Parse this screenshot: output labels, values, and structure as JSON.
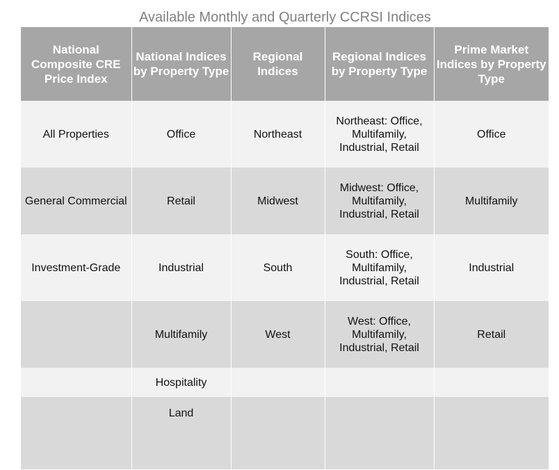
{
  "title": "Available Monthly and Quarterly CCRSI Indices",
  "table": {
    "headers": [
      "National Composite CRE Price Index",
      "National Indices by Property Type",
      "Regional Indices",
      "Regional Indices by Property Type",
      "Prime Market Indices by Property Type"
    ],
    "rows": [
      [
        "All Properties",
        "Office",
        "Northeast",
        "Northeast: Office, Multifamily, Industrial, Retail",
        "Office"
      ],
      [
        "General Commercial",
        "Retail",
        "Midwest",
        "Midwest: Office, Multifamily, Industrial, Retail",
        "Multifamily"
      ],
      [
        "Investment-Grade",
        "Industrial",
        "South",
        "South: Office, Multifamily, Industrial, Retail",
        "Industrial"
      ],
      [
        "",
        "Multifamily",
        "West",
        "West: Office, Multifamily, Industrial, Retail",
        "Retail"
      ],
      [
        "",
        "Hospitality",
        "",
        "",
        ""
      ],
      [
        "",
        "Land",
        "",
        "",
        ""
      ]
    ]
  },
  "colors": {
    "header_bg": "#a6a6a6",
    "row_light": "#f2f2f2",
    "row_dark": "#d9d9d9",
    "title_text": "#808080"
  }
}
